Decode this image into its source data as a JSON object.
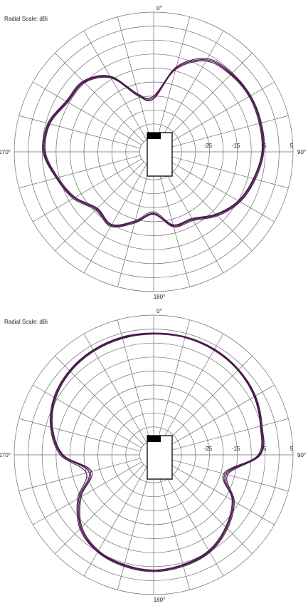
{
  "colors": {
    "trace": "#4a1a4e",
    "grid": "#6e6e6e",
    "device_fill": "#ffffff",
    "device_marker": "#000000"
  },
  "chart_data": [
    {
      "type": "polar-line",
      "title": "",
      "radial_scale_label": "Radial Scale: dBi",
      "angle_labels": {
        "a0": "0°",
        "a90": "90°",
        "a180": "180°",
        "a270": "270°"
      },
      "r_range_dBi": [
        -45,
        5
      ],
      "rings_dBi": [
        -40,
        -35,
        -30,
        -25,
        -20,
        -15,
        -10,
        -5,
        0,
        5
      ],
      "radial_tick_labels": [
        "-25",
        "-15",
        "-5",
        "5"
      ],
      "spoke_step_deg": 15,
      "angles_deg": [
        0,
        15,
        30,
        45,
        60,
        75,
        90,
        105,
        120,
        135,
        150,
        165,
        180,
        195,
        210,
        225,
        240,
        255,
        270,
        285,
        300,
        315,
        330,
        345
      ],
      "series": [
        {
          "values": [
            -26,
            -14,
            -7,
            -5.5,
            -5,
            -5.3,
            -5.8,
            -7.5,
            -9.5,
            -13,
            -17,
            -17.5,
            -23,
            -19,
            -14.5,
            -16,
            -12,
            -9,
            -5.6,
            -6,
            -9,
            -9.5,
            -14,
            -24
          ]
        },
        {
          "values": [
            -26,
            -14.5,
            -7.5,
            -6,
            -5.5,
            -5.8,
            -6.2,
            -8,
            -10,
            -13.5,
            -17.5,
            -18,
            -23.5,
            -19.5,
            -15,
            -16.5,
            -12.5,
            -9.5,
            -6.2,
            -6.5,
            -9.5,
            -10,
            -14.5,
            -24.5
          ]
        },
        {
          "values": [
            -25.5,
            -13.5,
            -6.5,
            -5.2,
            -4.8,
            -5,
            -5.5,
            -7.2,
            -9.2,
            -12.6,
            -16.6,
            -17.2,
            -22.6,
            -18.6,
            -14.2,
            -15.6,
            -11.6,
            -8.8,
            -5.3,
            -5.7,
            -8.7,
            -9.2,
            -13.7,
            -23.6
          ]
        },
        {
          "values": [
            -25,
            -14,
            -7,
            -5.7,
            -5.2,
            -5.5,
            -6,
            -7.8,
            -9.8,
            -13.2,
            -17.2,
            -17.8,
            -22.8,
            -19.2,
            -14.8,
            -16.2,
            -12.2,
            -9.2,
            -5.9,
            -6.2,
            -9.2,
            -9.7,
            -14.2,
            -24
          ]
        }
      ]
    },
    {
      "type": "polar-line",
      "title": "",
      "radial_scale_label": "Radial Scale: dBi",
      "angle_labels": {
        "a0": "0°",
        "a90": "90°",
        "a180": "180°",
        "a270": "270°"
      },
      "r_range_dBi": [
        -45,
        5
      ],
      "rings_dBi": [
        -40,
        -35,
        -30,
        -25,
        -20,
        -15,
        -10,
        -5,
        0,
        5
      ],
      "radial_tick_labels": [
        "-25",
        "-15",
        "-5",
        "5"
      ],
      "spoke_step_deg": 15,
      "angles_deg": [
        0,
        15,
        30,
        45,
        60,
        75,
        90,
        105,
        120,
        135,
        150,
        165,
        180,
        195,
        210,
        225,
        240,
        255,
        270,
        285,
        300,
        315,
        330,
        345
      ],
      "series": [
        {
          "values": [
            -1.5,
            -1.3,
            -1.5,
            -2,
            -3,
            -5,
            -7,
            -18,
            -12,
            -8,
            -5,
            -4,
            -3.5,
            -4,
            -5,
            -8,
            -14,
            -21,
            -12,
            -7,
            -4,
            -2.5,
            -1.8,
            -1.5
          ]
        },
        {
          "values": [
            -1.8,
            -1.6,
            -1.8,
            -2.3,
            -3.4,
            -5.4,
            -7.5,
            -18.5,
            -12.5,
            -8.5,
            -5.5,
            -4.4,
            -3.8,
            -4.4,
            -5.5,
            -8.6,
            -15,
            -22,
            -12.6,
            -7.5,
            -4.5,
            -2.9,
            -2.2,
            -1.9
          ]
        },
        {
          "values": [
            -1.4,
            -1.2,
            -1.3,
            -1.8,
            -2.8,
            -4.7,
            -6.7,
            -17.5,
            -11.6,
            -7.6,
            -4.7,
            -3.7,
            -3.2,
            -3.7,
            -4.8,
            -7.6,
            -13.5,
            -20,
            -11.5,
            -6.7,
            -3.7,
            -2.3,
            -1.6,
            -1.3
          ]
        },
        {
          "values": [
            -1.6,
            -1.4,
            -1.6,
            -2.1,
            -3.2,
            -5.2,
            -7.2,
            -19,
            -12.2,
            -8.2,
            -5.2,
            -4.2,
            -3.6,
            -4.2,
            -5.2,
            -8.2,
            -14.5,
            -21.5,
            -12.3,
            -7.2,
            -4.2,
            -2.7,
            -2,
            -1.7
          ]
        }
      ]
    }
  ]
}
